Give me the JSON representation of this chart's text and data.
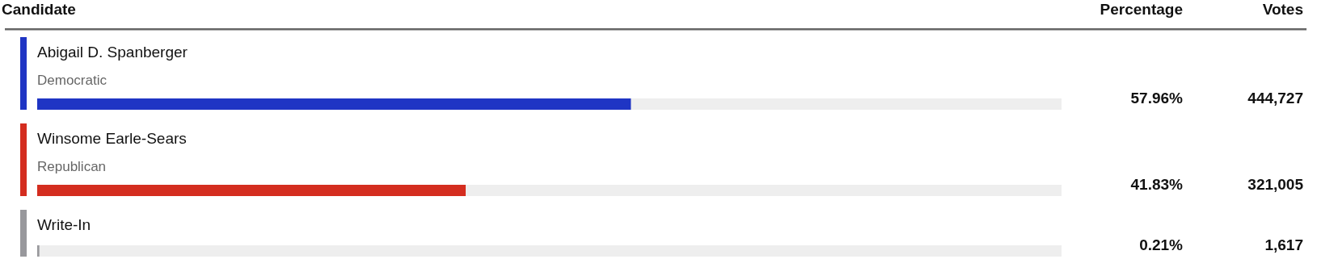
{
  "chart_data": [
    {
      "type": "bar",
      "orientation": "horizontal",
      "ylabel": "Candidate",
      "categories": [
        "Abigail D. Spanberger",
        "Winsome Earle-Sears",
        "Write-In"
      ],
      "xlim": [
        0,
        100
      ],
      "data_labels": true,
      "series": [
        {
          "name": "Percentage",
          "colors": [
            "#1f35c4",
            "#d42d1f",
            "#98989c"
          ],
          "values": [
            57.96,
            41.83,
            0.21
          ],
          "value_labels": [
            "57.96%",
            "41.83%",
            "0.21%"
          ]
        }
      ],
      "annotations": [
        "Democratic",
        "Republican"
      ]
    },
    {
      "type": "other",
      "title": "Votes",
      "value_labels": [
        "444,727",
        "321,005",
        "1,617"
      ]
    }
  ]
}
